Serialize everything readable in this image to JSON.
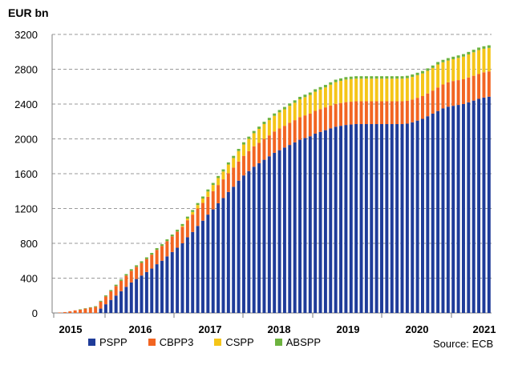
{
  "chart_data": {
    "type": "bar",
    "stacked": true,
    "unit_label": "EUR bn",
    "source": "Source: ECB",
    "ylim": [
      0,
      3200
    ],
    "yticks": [
      0,
      400,
      800,
      1200,
      1600,
      2000,
      2400,
      2800,
      3200
    ],
    "year_labels": [
      "2015",
      "2016",
      "2017",
      "2018",
      "2019",
      "2020",
      "2021"
    ],
    "grid": "horizontal dashed",
    "legend_position": "bottom",
    "series_order": [
      "PSPP",
      "CBPP3",
      "CSPP",
      "ABSPP"
    ],
    "series": [
      {
        "name": "PSPP",
        "color": "#1F3C99",
        "values": [
          0,
          0,
          0,
          0,
          0,
          0,
          0,
          0,
          0,
          50,
          100,
          150,
          200,
          250,
          300,
          350,
          390,
          430,
          470,
          510,
          560,
          600,
          650,
          700,
          750,
          800,
          870,
          930,
          1000,
          1060,
          1130,
          1190,
          1260,
          1320,
          1390,
          1450,
          1520,
          1580,
          1630,
          1680,
          1720,
          1760,
          1800,
          1840,
          1870,
          1900,
          1930,
          1960,
          1990,
          2010,
          2030,
          2060,
          2080,
          2100,
          2120,
          2140,
          2150,
          2160,
          2165,
          2170,
          2170,
          2170,
          2170,
          2170,
          2170,
          2170,
          2170,
          2170,
          2170,
          2175,
          2190,
          2210,
          2230,
          2260,
          2290,
          2320,
          2350,
          2370,
          2380,
          2390,
          2400,
          2420,
          2440,
          2460,
          2475,
          2485
        ]
      },
      {
        "name": "CBPP3",
        "color": "#F26522",
        "values": [
          0,
          5,
          10,
          20,
          30,
          40,
          50,
          60,
          70,
          80,
          90,
          100,
          110,
          120,
          130,
          135,
          140,
          145,
          150,
          160,
          165,
          170,
          175,
          180,
          185,
          190,
          195,
          200,
          200,
          205,
          205,
          210,
          210,
          215,
          215,
          220,
          220,
          225,
          230,
          235,
          235,
          240,
          240,
          245,
          250,
          250,
          255,
          255,
          260,
          260,
          260,
          262,
          262,
          262,
          262,
          262,
          262,
          262,
          262,
          262,
          262,
          262,
          262,
          262,
          262,
          262,
          262,
          262,
          262,
          262,
          262,
          262,
          262,
          262,
          265,
          270,
          275,
          280,
          285,
          285,
          285,
          285,
          285,
          285,
          290,
          290
        ]
      },
      {
        "name": "CSPP",
        "color": "#F5C518",
        "values": [
          0,
          0,
          0,
          0,
          0,
          0,
          0,
          0,
          0,
          0,
          0,
          0,
          0,
          0,
          0,
          0,
          0,
          0,
          0,
          0,
          0,
          0,
          0,
          0,
          0,
          10,
          20,
          30,
          40,
          50,
          60,
          70,
          80,
          90,
          100,
          110,
          120,
          130,
          140,
          150,
          160,
          170,
          175,
          180,
          185,
          190,
          195,
          200,
          205,
          210,
          215,
          220,
          225,
          230,
          240,
          250,
          255,
          260,
          260,
          260,
          260,
          260,
          260,
          260,
          260,
          260,
          260,
          260,
          260,
          260,
          260,
          260,
          260,
          260,
          260,
          265,
          255,
          250,
          250,
          255,
          260,
          265,
          270,
          275,
          270,
          270
        ]
      },
      {
        "name": "ABSPP",
        "color": "#6DB33F",
        "values": [
          0,
          0,
          0,
          0,
          0,
          2,
          4,
          6,
          8,
          10,
          12,
          14,
          15,
          16,
          17,
          18,
          18,
          19,
          19,
          20,
          20,
          20,
          21,
          21,
          22,
          22,
          22,
          23,
          23,
          23,
          24,
          24,
          24,
          25,
          25,
          25,
          25,
          26,
          26,
          26,
          26,
          27,
          27,
          27,
          27,
          27,
          27,
          28,
          28,
          28,
          28,
          28,
          28,
          28,
          28,
          28,
          28,
          28,
          28,
          28,
          28,
          28,
          28,
          28,
          28,
          28,
          28,
          28,
          28,
          28,
          28,
          28,
          28,
          28,
          28,
          28,
          28,
          28,
          29,
          29,
          29,
          29,
          29,
          29,
          29,
          30
        ]
      }
    ]
  }
}
